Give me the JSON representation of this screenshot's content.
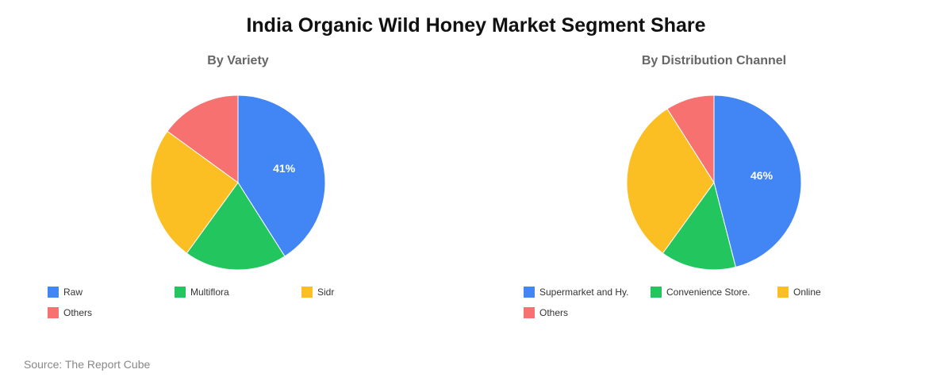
{
  "title": "India Organic Wild Honey Market Segment Share",
  "source": "Source: The Report Cube",
  "chart_data": [
    {
      "type": "pie",
      "title": "By Variety",
      "categories": [
        "Raw",
        "Multiflora",
        "Sidr",
        "Others"
      ],
      "values": [
        41,
        19,
        25,
        15
      ],
      "colors": [
        "#4285F4",
        "#22C55E",
        "#FBBF24",
        "#F87171"
      ],
      "data_labels": [
        "41%",
        "",
        "",
        ""
      ],
      "start_angle_deg": 0,
      "direction": "clockwise",
      "legend_position": "bottom"
    },
    {
      "type": "pie",
      "title": "By Distribution Channel",
      "categories": [
        "Supermarket and Hy.",
        "Convenience Store.",
        "Online",
        "Others"
      ],
      "values": [
        46,
        14,
        31,
        9
      ],
      "colors": [
        "#4285F4",
        "#22C55E",
        "#FBBF24",
        "#F87171"
      ],
      "data_labels": [
        "46%",
        "",
        "",
        ""
      ],
      "start_angle_deg": 0,
      "direction": "clockwise",
      "legend_position": "bottom"
    }
  ]
}
